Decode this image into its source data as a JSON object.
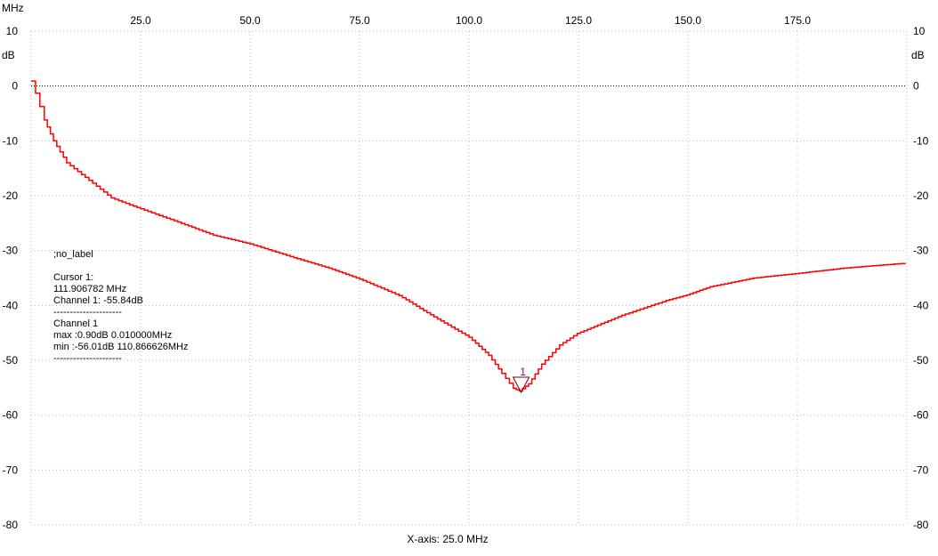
{
  "chart_data": {
    "type": "line",
    "x_unit": "MHz",
    "y_unit": "dB",
    "xlabel": "X-axis: 25.0 MHz",
    "xlim": [
      0,
      200
    ],
    "ylim": [
      -80,
      10
    ],
    "x_ticks": [
      "25.0",
      "50.0",
      "75.0",
      "100.0",
      "125.0",
      "150.0",
      "175.0"
    ],
    "x_tick_values": [
      25,
      50,
      75,
      100,
      125,
      150,
      175
    ],
    "y_ticks": [
      "10",
      "0",
      "-10",
      "-20",
      "-30",
      "-40",
      "-50",
      "-60",
      "-70",
      "-80"
    ],
    "y_tick_values": [
      10,
      0,
      -10,
      -20,
      -30,
      -40,
      -50,
      -60,
      -70,
      -80
    ],
    "grid": true,
    "colors": {
      "trace": "#ff0000",
      "grid": "#bbbbbb",
      "marker": "#800000",
      "marker_label": "#800080"
    },
    "series": [
      {
        "x": [
          0,
          1,
          3,
          5.1,
          8.1,
          13.2,
          18.3,
          25,
          33.5,
          41.6,
          50,
          60,
          68,
          75,
          84,
          92,
          100,
          104.5,
          107.5,
          110.1,
          111.5,
          113.6,
          116.6,
          120.7,
          124.7,
          134.9,
          145,
          149.7,
          155,
          165,
          174.6,
          185.6,
          199.6
        ],
        "y": [
          0.9,
          -1.3,
          -6.2,
          -10,
          -14,
          -17.2,
          -20.4,
          -22.4,
          -24.8,
          -27.2,
          -28.8,
          -31.3,
          -33.2,
          -35.2,
          -38.2,
          -42.1,
          -45.8,
          -49.1,
          -52.4,
          -55.1,
          -55.6,
          -54.3,
          -50.7,
          -47.2,
          -45.1,
          -41.8,
          -39.1,
          -38.1,
          -36.6,
          -35,
          -34.2,
          -33.2,
          -32.3
        ]
      }
    ],
    "marker": {
      "label": "1",
      "x": 111.906782,
      "y": -55.84
    }
  },
  "info": {
    "label": ";no_label",
    "cursor_title": "Cursor 1:",
    "cursor_freq": "111.906782 MHz",
    "cursor_value": "Channel 1: -55.84dB",
    "separator": "---------------------",
    "channel_title": "Channel 1",
    "max": "max :0.90dB 0.010000MHz",
    "min": "min :-56.01dB 110.866626MHz"
  }
}
